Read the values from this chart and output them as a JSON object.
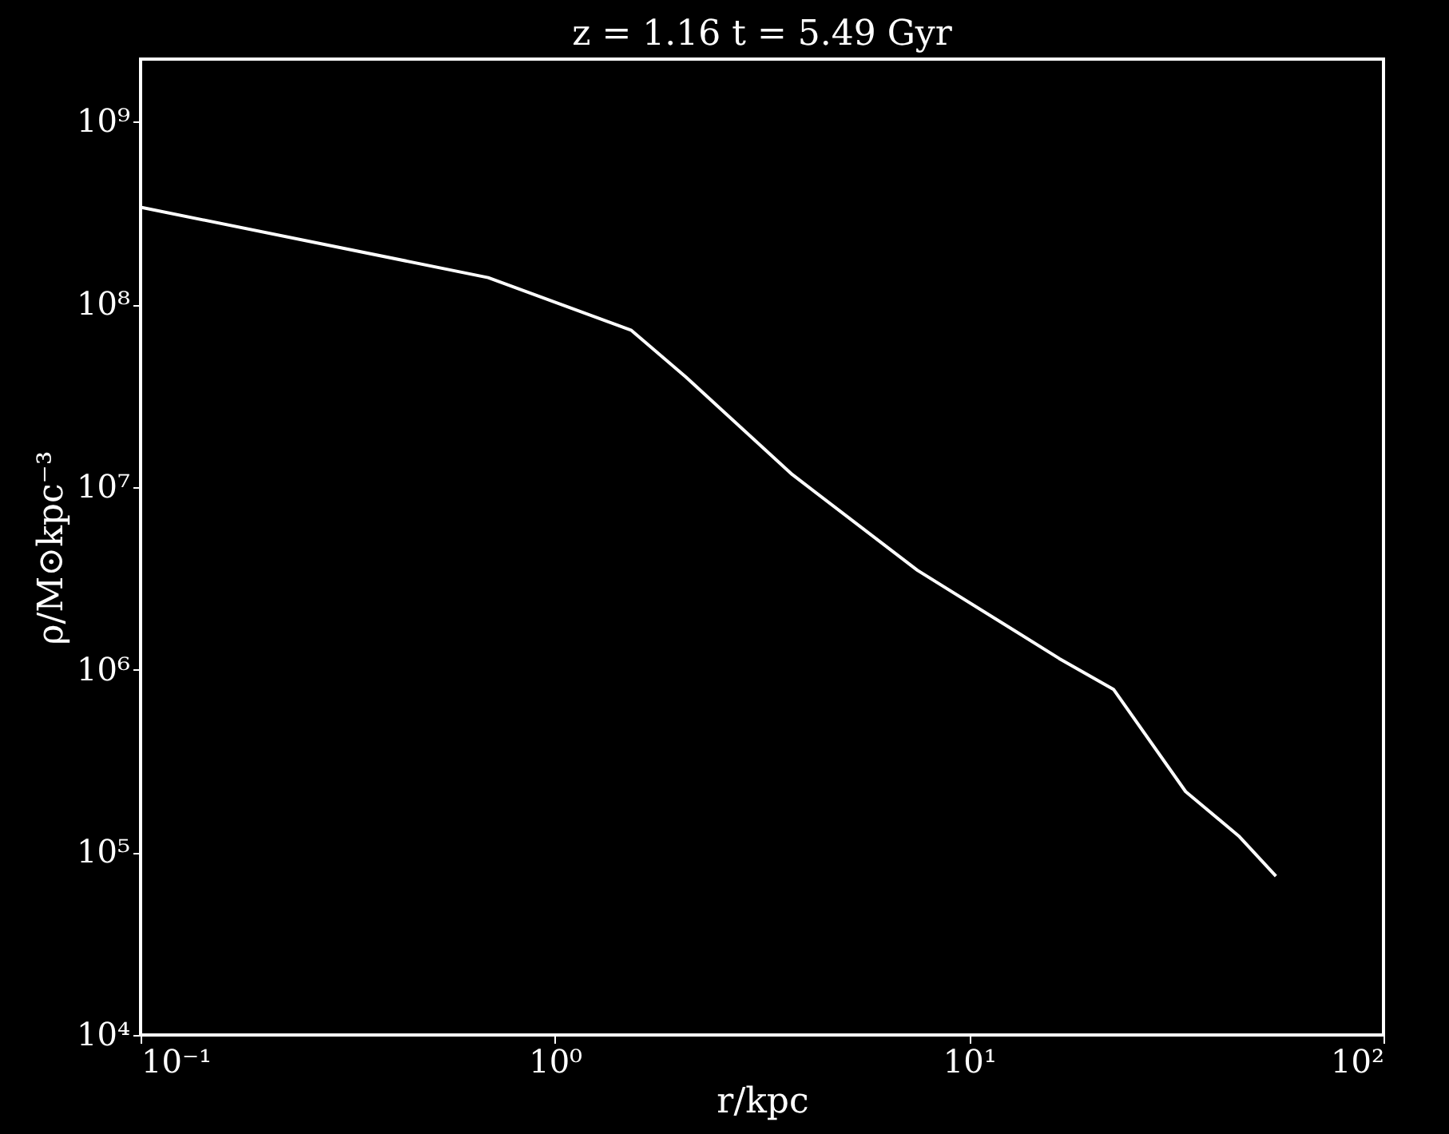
{
  "chart_data": {
    "type": "line",
    "title": "z = 1.16  t = 5.49 Gyr",
    "xlabel": "r/kpc",
    "ylabel": "ρ/M⊙kpc⁻³",
    "x": [
      0.1,
      0.69,
      1.53,
      2.07,
      3.74,
      7.5,
      16.5,
      22.3,
      33.3,
      44.7,
      55
    ],
    "series": [
      {
        "color": "#ffffff",
        "values": [
          340000000.0,
          140000000.0,
          72000000.0,
          40000000.0,
          11700000.0,
          3500000.0,
          1150000.0,
          780000.0,
          215000.0,
          123000.0,
          74000.0
        ]
      }
    ],
    "log": "xy",
    "grid": false,
    "marker": "none",
    "line_style": "solid",
    "xlim": [
      0.1,
      100
    ],
    "ylim": [
      10000,
      2200000000.0
    ],
    "xticks": [
      {
        "value": 0.1,
        "label": "10⁻¹"
      },
      {
        "value": 1,
        "label": "10⁰"
      },
      {
        "value": 10,
        "label": "10¹"
      },
      {
        "value": 100,
        "label": "10²"
      }
    ],
    "yticks": [
      {
        "value": 10000,
        "label": "10⁴"
      },
      {
        "value": 100000,
        "label": "10⁵"
      },
      {
        "value": 1000000,
        "label": "10⁶"
      },
      {
        "value": 10000000,
        "label": "10⁷"
      },
      {
        "value": 100000000,
        "label": "10⁸"
      },
      {
        "value": 1000000000,
        "label": "10⁹"
      }
    ]
  }
}
